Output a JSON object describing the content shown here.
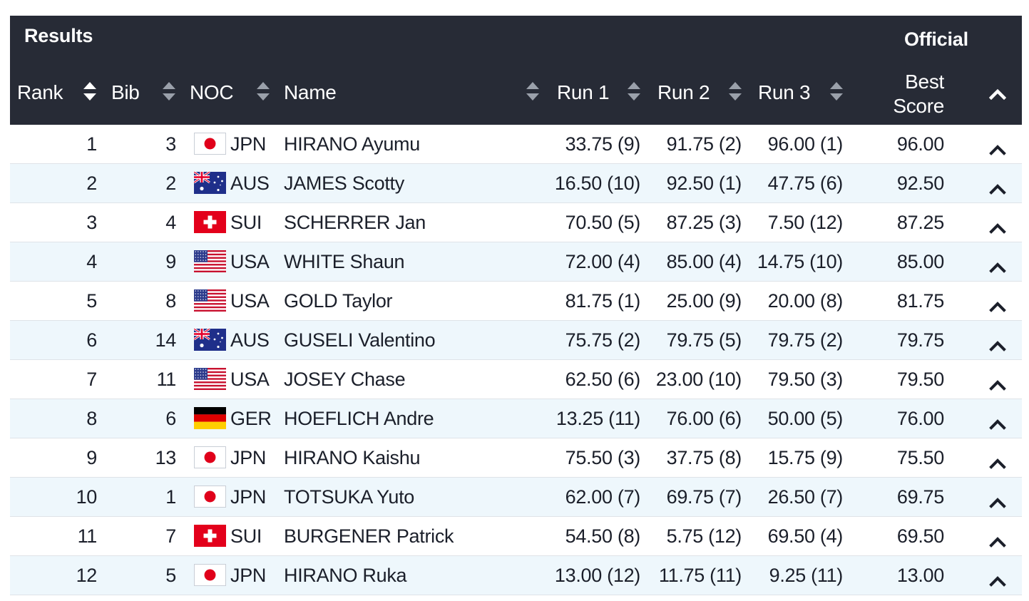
{
  "header": {
    "title": "Results",
    "status": "Official",
    "columns": {
      "rank": "Rank",
      "bib": "Bib",
      "noc": "NOC",
      "name": "Name",
      "run1": "Run 1",
      "run2": "Run 2",
      "run3": "Run 3",
      "best_line1": "Best",
      "best_line2": "Score"
    }
  },
  "icons": {
    "sort": "sort-arrows-icon",
    "collapse": "chevron-up-icon",
    "row_expand": "chevron-up-icon"
  },
  "colors": {
    "header_bg": "#272b36",
    "row_alt_bg": "#eef7fc",
    "row_border": "#dfe3e8"
  },
  "rows": [
    {
      "rank": "1",
      "bib": "3",
      "noc": "JPN",
      "name": "HIRANO Ayumu",
      "run1": "33.75 (9)",
      "run2": "91.75 (2)",
      "run3": "96.00 (1)",
      "best": "96.00"
    },
    {
      "rank": "2",
      "bib": "2",
      "noc": "AUS",
      "name": "JAMES Scotty",
      "run1": "16.50 (10)",
      "run2": "92.50 (1)",
      "run3": "47.75 (6)",
      "best": "92.50"
    },
    {
      "rank": "3",
      "bib": "4",
      "noc": "SUI",
      "name": "SCHERRER Jan",
      "run1": "70.50 (5)",
      "run2": "87.25 (3)",
      "run3": "7.50 (12)",
      "best": "87.25"
    },
    {
      "rank": "4",
      "bib": "9",
      "noc": "USA",
      "name": "WHITE Shaun",
      "run1": "72.00 (4)",
      "run2": "85.00 (4)",
      "run3": "14.75 (10)",
      "best": "85.00"
    },
    {
      "rank": "5",
      "bib": "8",
      "noc": "USA",
      "name": "GOLD Taylor",
      "run1": "81.75 (1)",
      "run2": "25.00 (9)",
      "run3": "20.00 (8)",
      "best": "81.75"
    },
    {
      "rank": "6",
      "bib": "14",
      "noc": "AUS",
      "name": "GUSELI Valentino",
      "run1": "75.75 (2)",
      "run2": "79.75 (5)",
      "run3": "79.75 (2)",
      "best": "79.75"
    },
    {
      "rank": "7",
      "bib": "11",
      "noc": "USA",
      "name": "JOSEY Chase",
      "run1": "62.50 (6)",
      "run2": "23.00 (10)",
      "run3": "79.50 (3)",
      "best": "79.50"
    },
    {
      "rank": "8",
      "bib": "6",
      "noc": "GER",
      "name": "HOEFLICH Andre",
      "run1": "13.25 (11)",
      "run2": "76.00 (6)",
      "run3": "50.00 (5)",
      "best": "76.00"
    },
    {
      "rank": "9",
      "bib": "13",
      "noc": "JPN",
      "name": "HIRANO Kaishu",
      "run1": "75.50 (3)",
      "run2": "37.75 (8)",
      "run3": "15.75 (9)",
      "best": "75.50"
    },
    {
      "rank": "10",
      "bib": "1",
      "noc": "JPN",
      "name": "TOTSUKA Yuto",
      "run1": "62.00 (7)",
      "run2": "69.75 (7)",
      "run3": "26.50 (7)",
      "best": "69.75"
    },
    {
      "rank": "11",
      "bib": "7",
      "noc": "SUI",
      "name": "BURGENER Patrick",
      "run1": "54.50 (8)",
      "run2": "5.75 (12)",
      "run3": "69.50 (4)",
      "best": "69.50"
    },
    {
      "rank": "12",
      "bib": "5",
      "noc": "JPN",
      "name": "HIRANO Ruka",
      "run1": "13.00 (12)",
      "run2": "11.75 (11)",
      "run3": "9.25 (11)",
      "best": "13.00"
    }
  ]
}
